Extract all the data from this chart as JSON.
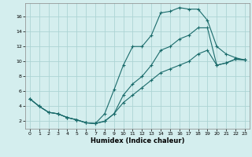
{
  "xlabel": "Humidex (Indice chaleur)",
  "bg_color": "#d4eeee",
  "grid_color": "#add4d4",
  "line_color": "#1a6b6b",
  "xlim": [
    -0.5,
    23.5
  ],
  "ylim": [
    1.0,
    17.8
  ],
  "yticks": [
    2,
    4,
    6,
    8,
    10,
    12,
    14,
    16
  ],
  "xticks": [
    0,
    1,
    2,
    3,
    4,
    5,
    6,
    7,
    8,
    9,
    10,
    11,
    12,
    13,
    14,
    15,
    16,
    17,
    18,
    19,
    20,
    21,
    22,
    23
  ],
  "line1_x": [
    0,
    1,
    2,
    3,
    4,
    5,
    6,
    7,
    8,
    9,
    10,
    11,
    12,
    13,
    14,
    15,
    16,
    17,
    18,
    19,
    20,
    21,
    22,
    23
  ],
  "line1_y": [
    5.0,
    4.0,
    3.2,
    3.0,
    2.5,
    2.2,
    1.8,
    1.7,
    3.0,
    6.2,
    9.5,
    12.0,
    12.0,
    13.5,
    16.5,
    16.7,
    17.2,
    17.0,
    17.0,
    15.5,
    12.0,
    11.0,
    10.5,
    10.2
  ],
  "line2_x": [
    0,
    1,
    2,
    3,
    4,
    5,
    6,
    7,
    8,
    9,
    10,
    11,
    12,
    13,
    14,
    15,
    16,
    17,
    18,
    19,
    20,
    21,
    22,
    23
  ],
  "line2_y": [
    5.0,
    4.0,
    3.2,
    3.0,
    2.5,
    2.2,
    1.8,
    1.7,
    2.0,
    3.0,
    5.5,
    7.0,
    8.0,
    9.5,
    11.5,
    12.0,
    13.0,
    13.5,
    14.5,
    14.5,
    9.5,
    9.8,
    10.3,
    10.2
  ],
  "line3_x": [
    0,
    1,
    2,
    3,
    4,
    5,
    6,
    7,
    8,
    9,
    10,
    11,
    12,
    13,
    14,
    15,
    16,
    17,
    18,
    19,
    20,
    21,
    22,
    23
  ],
  "line3_y": [
    5.0,
    4.0,
    3.2,
    3.0,
    2.5,
    2.2,
    1.8,
    1.7,
    2.0,
    3.0,
    4.5,
    5.5,
    6.5,
    7.5,
    8.5,
    9.0,
    9.5,
    10.0,
    11.0,
    11.5,
    9.5,
    9.8,
    10.3,
    10.2
  ]
}
